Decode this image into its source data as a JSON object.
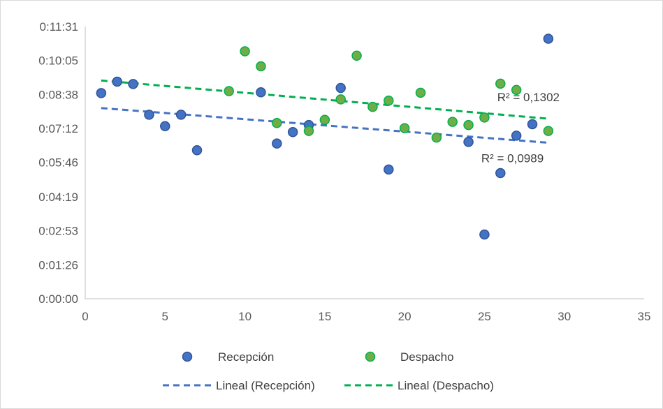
{
  "chart_data": {
    "type": "scatter",
    "title": "",
    "xlabel": "",
    "ylabel": "",
    "xlim": [
      0,
      35
    ],
    "ylim": [
      0,
      691
    ],
    "x_ticks": [
      0,
      5,
      10,
      15,
      20,
      25,
      30,
      35
    ],
    "x_tick_labels": [
      "0",
      "5",
      "10",
      "15",
      "20",
      "25",
      "30",
      "35"
    ],
    "y_ticks": [
      0,
      86,
      173,
      259,
      346,
      432,
      518,
      605,
      691
    ],
    "y_tick_labels": [
      "0:00:00",
      "0:01:26",
      "0:02:53",
      "0:04:19",
      "0:05:46",
      "0:07:12",
      "0:08:38",
      "0:10:05",
      "0:11:31"
    ],
    "grid": false,
    "legend_position": "bottom",
    "series": [
      {
        "name": "Recepción",
        "color": "#4472c4",
        "marker_border": "#2f5597",
        "points": [
          [
            1,
            522
          ],
          [
            2,
            551
          ],
          [
            3,
            545
          ],
          [
            4,
            467
          ],
          [
            5,
            438
          ],
          [
            6,
            467
          ],
          [
            7,
            377
          ],
          [
            11,
            524
          ],
          [
            12,
            394
          ],
          [
            13,
            423
          ],
          [
            14,
            441
          ],
          [
            16,
            535
          ],
          [
            19,
            328
          ],
          [
            24,
            398
          ],
          [
            25,
            163
          ],
          [
            26,
            319
          ],
          [
            27,
            414
          ],
          [
            28,
            443
          ],
          [
            29,
            660
          ]
        ]
      },
      {
        "name": "Despacho",
        "color": "#70ad47",
        "marker_border": "#00b050",
        "points": [
          [
            9,
            527
          ],
          [
            10,
            628
          ],
          [
            11,
            590
          ],
          [
            12,
            446
          ],
          [
            14,
            426
          ],
          [
            15,
            454
          ],
          [
            16,
            506
          ],
          [
            17,
            617
          ],
          [
            18,
            487
          ],
          [
            19,
            503
          ],
          [
            20,
            433
          ],
          [
            21,
            523
          ],
          [
            22,
            409
          ],
          [
            23,
            449
          ],
          [
            24,
            441
          ],
          [
            25,
            460
          ],
          [
            26,
            546
          ],
          [
            27,
            530
          ],
          [
            29,
            426
          ]
        ]
      }
    ],
    "trendlines": [
      {
        "name": "Lineal (Recepción)",
        "color": "#4472c4",
        "x": [
          1,
          29
        ],
        "y": [
          484,
          396
        ],
        "r_squared_label": "R² = 0,0989"
      },
      {
        "name": "Lineal (Despacho)",
        "color": "#00b050",
        "x": [
          1,
          29
        ],
        "y": [
          554,
          457
        ],
        "r_squared_label": "R² = 0,1302"
      }
    ]
  }
}
